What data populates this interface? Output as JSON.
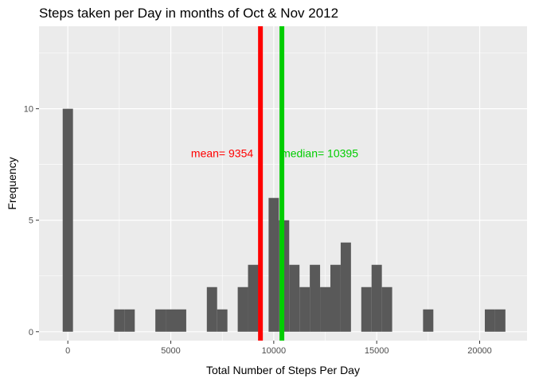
{
  "chart_data": {
    "type": "bar",
    "title": "Steps taken per Day in months of Oct & Nov 2012",
    "xlabel": "Total Number of Steps Per Day",
    "ylabel": "Frequency",
    "xlim": [
      -1400,
      22300
    ],
    "ylim": [
      -0.4,
      13.7
    ],
    "xticks": [
      0,
      5000,
      10000,
      15000,
      20000
    ],
    "yticks": [
      0,
      5,
      10
    ],
    "grid": true,
    "bar_color": "#595959",
    "panel_color": "#ebebeb",
    "grid_color": "#ffffff",
    "bins": [
      {
        "x": 0,
        "count": 10
      },
      {
        "x": 2500,
        "count": 1
      },
      {
        "x": 3000,
        "count": 1
      },
      {
        "x": 4500,
        "count": 1
      },
      {
        "x": 5000,
        "count": 1
      },
      {
        "x": 5500,
        "count": 1
      },
      {
        "x": 7000,
        "count": 2
      },
      {
        "x": 7500,
        "count": 1
      },
      {
        "x": 8500,
        "count": 2
      },
      {
        "x": 9000,
        "count": 3
      },
      {
        "x": 10000,
        "count": 6
      },
      {
        "x": 10500,
        "count": 5
      },
      {
        "x": 11000,
        "count": 3
      },
      {
        "x": 11500,
        "count": 2
      },
      {
        "x": 12000,
        "count": 3
      },
      {
        "x": 12500,
        "count": 2
      },
      {
        "x": 13000,
        "count": 3
      },
      {
        "x": 13500,
        "count": 4
      },
      {
        "x": 14500,
        "count": 2
      },
      {
        "x": 15000,
        "count": 3
      },
      {
        "x": 15500,
        "count": 2
      },
      {
        "x": 17500,
        "count": 1
      },
      {
        "x": 20500,
        "count": 1
      },
      {
        "x": 21000,
        "count": 1
      }
    ],
    "bin_width": 500,
    "reference_lines": [
      {
        "label": "mean= 9354",
        "value": 9354,
        "color": "#ff0000",
        "label_y": 8,
        "anchor": "end"
      },
      {
        "label": "median= 10395",
        "value": 10395,
        "color": "#00cd00",
        "label_y": 8,
        "anchor": "start"
      }
    ]
  }
}
